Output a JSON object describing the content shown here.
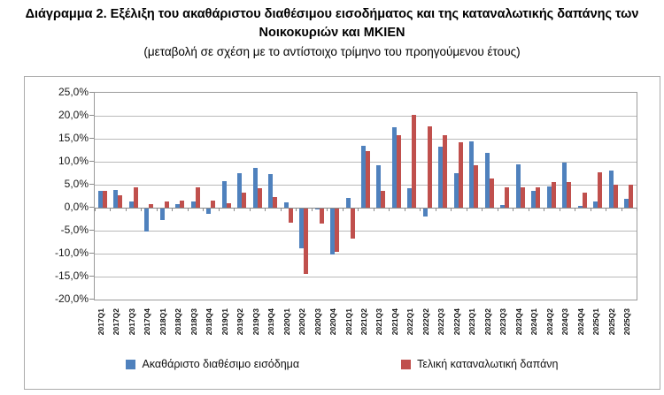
{
  "header": {
    "title": "Διάγραμμα 2. Εξέλιξη του ακαθάριστου διαθέσιμου εισοδήματος και της καταναλωτικής δαπάνης των Νοικοκυριών και ΜΚΙΕΝ",
    "subtitle": "(μεταβολή σε σχέση με το αντίστοιχο τρίμηνο του προηγούμενου έτους)"
  },
  "chart_data": {
    "type": "bar",
    "title": "Διάγραμμα 2. Εξέλιξη του ακαθάριστου διαθέσιμου εισοδήματος και της καταναλωτικής δαπάνης των Νοικοκυριών και ΜΚΙΕΝ",
    "subtitle": "(μεταβολή σε σχέση με το αντίστοιχο τρίμηνο του προηγούμενου έτους)",
    "xlabel": "",
    "ylabel": "",
    "ylim": [
      -20,
      25
    ],
    "ytick_step": 5,
    "ytick_labels": [
      "25,0%",
      "20,0%",
      "15,0%",
      "10,0%",
      "5,0%",
      "0,0%",
      "-5,0%",
      "-10,0%",
      "-15,0%",
      "-20,0%"
    ],
    "grid": true,
    "legend_position": "bottom",
    "categories": [
      "2017Q1",
      "2017Q2",
      "2017Q3",
      "2017Q4",
      "2018Q1",
      "2018Q2",
      "2018Q3",
      "2018Q4",
      "2019Q1",
      "2019Q2",
      "2019Q3",
      "2019Q4",
      "2020Q1",
      "2020Q2",
      "2020Q3",
      "2020Q4",
      "2021Q1",
      "2021Q2",
      "2021Q3",
      "2021Q4",
      "2022Q1",
      "2022Q2",
      "2022Q3",
      "2022Q4",
      "2023Q1",
      "2023Q2",
      "2023Q3",
      "2023Q4",
      "2024Q1",
      "2024Q2",
      "2024Q3",
      "2024Q4",
      "2025Q1",
      "2025Q2",
      "2025Q3"
    ],
    "series": [
      {
        "name": "Ακαθάριστο διαθέσιμο εισόδημα",
        "color": "#4F81BD",
        "values": [
          3.7,
          3.9,
          1.4,
          -5.0,
          -2.5,
          0.8,
          1.4,
          -1.2,
          5.7,
          7.5,
          8.7,
          7.3,
          1.1,
          -8.7,
          -0.2,
          -10.0,
          2.2,
          13.4,
          9.3,
          17.5,
          4.3,
          -1.8,
          13.3,
          7.5,
          14.5,
          12.0,
          0.5,
          9.5,
          3.6,
          4.7,
          9.8,
          0.4,
          1.4,
          8.1,
          2.0
        ]
      },
      {
        "name": "Τελική καταναλωτική δαπάνη",
        "color": "#C0504D",
        "values": [
          3.7,
          2.6,
          4.4,
          0.8,
          1.3,
          1.6,
          4.4,
          1.6,
          0.9,
          3.2,
          4.2,
          2.4,
          -3.0,
          -14.3,
          -3.2,
          -9.5,
          -6.5,
          12.4,
          3.6,
          15.7,
          20.2,
          17.6,
          15.8,
          14.3,
          9.2,
          6.4,
          4.4,
          4.4,
          4.4,
          5.5,
          5.6,
          3.3,
          7.7,
          5.0,
          5.0
        ]
      }
    ],
    "colors": {
      "gridline": "#b9b9b9",
      "axis": "#8a8a8a",
      "frame_border": "#ababab",
      "background": "#ffffff"
    }
  }
}
